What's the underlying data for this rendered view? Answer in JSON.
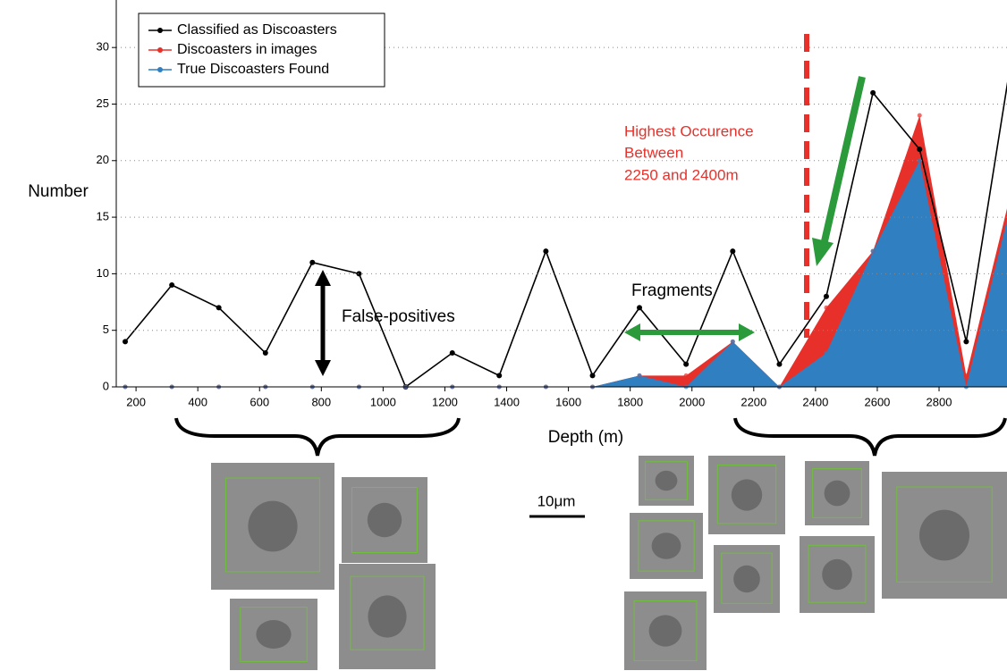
{
  "chart_data": {
    "type": "line",
    "x_label": "Depth (m)",
    "y_label": "Number",
    "x": [
      165,
      316,
      468,
      619,
      771,
      922,
      1073,
      1224,
      1376,
      1527,
      1678,
      1830,
      1981,
      2132,
      2283,
      2435,
      2586,
      2737,
      2888,
      3040
    ],
    "series": [
      {
        "name": "Classified as Discoasters",
        "color": "#000000",
        "style": "line",
        "values": [
          4,
          9,
          7,
          3,
          11,
          10,
          0,
          3,
          1,
          12,
          1,
          7,
          2,
          12,
          2,
          8,
          26,
          21,
          4,
          30
        ]
      },
      {
        "name": "Discoasters in images",
        "color": "#e8302a",
        "style": "area",
        "values": [
          0,
          0,
          0,
          0,
          0,
          0,
          0,
          0,
          0,
          0,
          0,
          1,
          1,
          4,
          0,
          7,
          12,
          24,
          1,
          18
        ]
      },
      {
        "name": "True Discoasters Found",
        "color": "#2f7fc1",
        "style": "area",
        "values": [
          0,
          0,
          0,
          0,
          0,
          0,
          0,
          0,
          0,
          0,
          0,
          1,
          0,
          4,
          0,
          3,
          12,
          20,
          0,
          17
        ]
      }
    ],
    "xlim": [
      136,
      3020
    ],
    "ylim": [
      0,
      34.2
    ],
    "xticks": [
      200,
      400,
      600,
      800,
      1000,
      1200,
      1400,
      1600,
      1800,
      2000,
      2200,
      2400,
      2600,
      2800
    ],
    "yticks": [
      0,
      5,
      10,
      15,
      20,
      25,
      30
    ],
    "grid": true,
    "legend": "upper left",
    "annotations": [
      "False-positives",
      "Fragments",
      "Highest Occurence",
      "Between",
      "2250 and 2400m",
      "10μm"
    ]
  }
}
